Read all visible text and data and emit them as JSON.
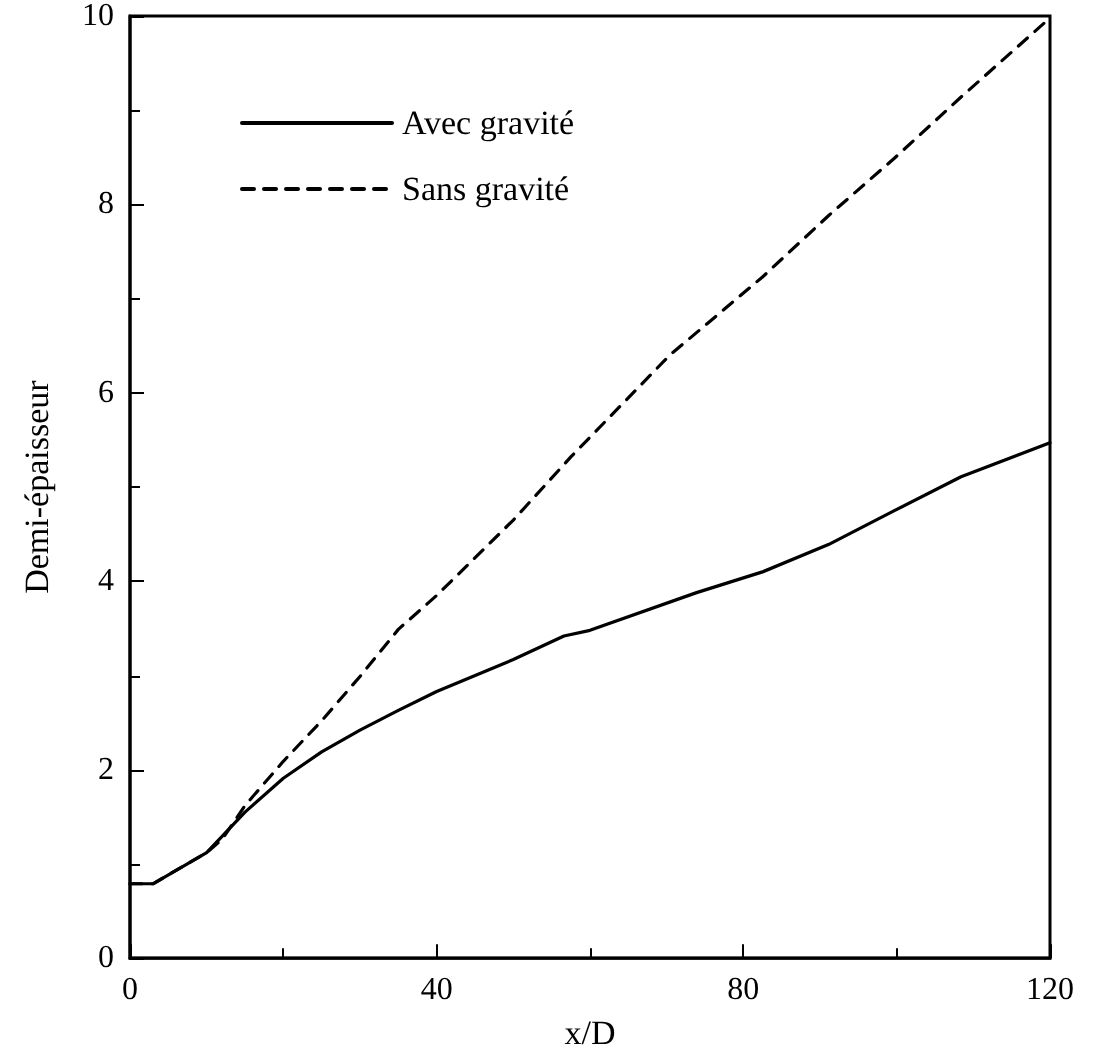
{
  "chart_data": {
    "type": "line",
    "xlabel": "x/D",
    "ylabel": "Demi-épaisseur",
    "xlim": [
      0,
      120
    ],
    "xticks": [
      0,
      40,
      80,
      120
    ],
    "ylim": [
      0,
      10
    ],
    "yticks": [
      0,
      2,
      4,
      6,
      8,
      10
    ],
    "grid": false,
    "legend": "top left",
    "marker": "none",
    "series": [
      {
        "name": "Avec gravité",
        "color": "#000000",
        "line_style": "solid",
        "x": [
          0,
          3,
          10,
          15,
          20,
          25,
          30,
          35,
          40,
          50,
          56.6,
          60,
          73.9,
          82.5,
          91.1,
          99.7,
          108.4,
          120
        ],
        "values": [
          0.79,
          0.79,
          1.12,
          1.55,
          1.91,
          2.19,
          2.42,
          2.63,
          2.83,
          3.17,
          3.42,
          3.48,
          3.88,
          4.1,
          4.39,
          4.75,
          5.11,
          5.47
        ]
      },
      {
        "name": "Sans gravité",
        "color": "#000000",
        "line_style": "dashed",
        "x": [
          0,
          3,
          10,
          12,
          15,
          20,
          25,
          30,
          35,
          40,
          50,
          57.5,
          70.4,
          82.5,
          91.1,
          99.7,
          108.4,
          120
        ],
        "values": [
          0.79,
          0.79,
          1.12,
          1.26,
          1.62,
          2.09,
          2.52,
          2.99,
          3.49,
          3.85,
          4.65,
          5.32,
          6.4,
          7.23,
          7.88,
          8.49,
          9.14,
          9.98
        ]
      }
    ]
  }
}
